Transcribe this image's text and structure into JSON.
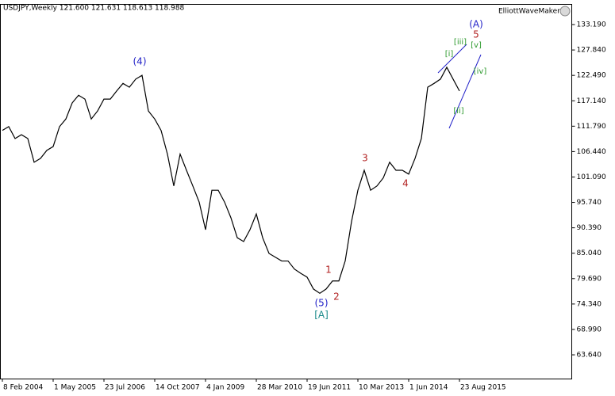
{
  "header": "USDJPY,Weekly  121.600 121.631 118.613 118.988",
  "badge": "ElliottWaveMaker",
  "chart_data": {
    "type": "line",
    "series": [
      {
        "name": "USDJPY",
        "color": "#000000",
        "values": [
          110.9,
          111.7,
          109.2,
          110,
          109.2,
          104.2,
          105,
          106.7,
          107.5,
          111.7,
          113.3,
          116.7,
          118.3,
          117.5,
          113.3,
          115,
          117.5,
          117.5,
          119.2,
          120.8,
          120,
          121.7,
          122.5,
          115,
          113.3,
          110.9,
          105.9,
          99.2,
          105.9,
          102.5,
          99.2,
          95.8,
          90,
          98.3,
          98.3,
          95.8,
          92.5,
          88.3,
          87.5,
          90,
          93.3,
          88.3,
          85,
          84.2,
          83.4,
          83.4,
          81.7,
          80.8,
          80,
          77.5,
          76.6,
          77.5,
          79.2,
          79.2,
          83.4,
          91.7,
          98.3,
          102.5,
          98.3,
          99.2,
          100.9,
          104.2,
          102.5,
          102.5,
          101.7,
          105,
          109.2,
          120,
          120.8,
          121.7,
          124.2,
          121.7,
          119.2
        ]
      }
    ],
    "ylim": [
      58.64,
      137.53
    ],
    "yticks": [
      {
        "value": 133.19,
        "label": "133.190"
      },
      {
        "value": 127.84,
        "label": "127.840"
      },
      {
        "value": 122.49,
        "label": "122.490"
      },
      {
        "value": 117.14,
        "label": "117.140"
      },
      {
        "value": 111.79,
        "label": "111.790"
      },
      {
        "value": 106.44,
        "label": "106.440"
      },
      {
        "value": 101.09,
        "label": "101.090"
      },
      {
        "value": 95.74,
        "label": "95.740"
      },
      {
        "value": 90.39,
        "label": "90.390"
      },
      {
        "value": 85.04,
        "label": "85.040"
      },
      {
        "value": 79.69,
        "label": "79.690"
      },
      {
        "value": 74.34,
        "label": "74.340"
      },
      {
        "value": 68.99,
        "label": "68.990"
      },
      {
        "value": 63.64,
        "label": "63.640"
      }
    ],
    "xticks": [
      {
        "value": 0,
        "label": "8 Feb 2004"
      },
      {
        "value": 8,
        "label": "1 May 2005"
      },
      {
        "value": 16,
        "label": "23 Jul 2006"
      },
      {
        "value": 24,
        "label": "14 Oct 2007"
      },
      {
        "value": 32,
        "label": "4 Jan 2009"
      },
      {
        "value": 40,
        "label": "28 Mar 2010"
      },
      {
        "value": 48,
        "label": "19 Jun 2011"
      },
      {
        "value": 56,
        "label": "10 Mar 2013"
      },
      {
        "value": 64,
        "label": "1 Jun 2014"
      },
      {
        "value": 72,
        "label": "23 Aug 2015"
      }
    ],
    "annotations": [
      "(4)",
      "(5)",
      "[A]",
      "1",
      "2",
      "3",
      "4",
      "5",
      "(A)",
      "[i]",
      "[ii]",
      "[iii]",
      "[iv]",
      "[v]"
    ]
  }
}
